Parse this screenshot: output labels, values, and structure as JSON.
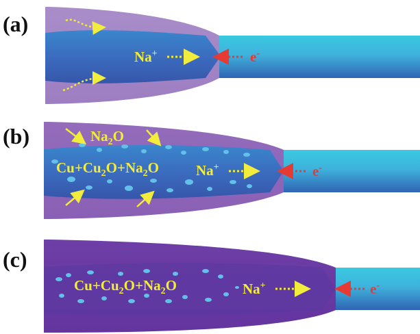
{
  "colors": {
    "wire_light": "#3fd0e6",
    "wire_dark": "#2f6fb8",
    "outer_light": "#a78ac8",
    "outer_mid": "#8f67b8",
    "outer_dark": "#6b3aa6",
    "core_blue": "#3d60b8",
    "arrow_yellow": "#f2ec3c",
    "arrow_red": "#e63a35",
    "particle": "#63c0e8"
  },
  "panels": [
    {
      "label": "(a)",
      "na_ion": {
        "base": "Na",
        "sup": "+"
      },
      "electron": {
        "base": "e",
        "sup": "-"
      }
    },
    {
      "label": "(b)",
      "oxide": {
        "pre": "Na",
        "sub": "2",
        "post": "O"
      },
      "composition": {
        "p1": "Cu+Cu",
        "s1": "2",
        "p2": "O+Na",
        "s2": "2",
        "p3": "O"
      },
      "na_ion": {
        "base": "Na",
        "sup": "+"
      },
      "electron": {
        "base": "e",
        "sup": "-"
      }
    },
    {
      "label": "(c)",
      "composition": {
        "p1": "Cu+Cu",
        "s1": "2",
        "p2": "O+Na",
        "s2": "2",
        "p3": "O"
      },
      "na_ion": {
        "base": "Na",
        "sup": "+"
      },
      "electron": {
        "base": "e",
        "sup": "-"
      }
    }
  ]
}
